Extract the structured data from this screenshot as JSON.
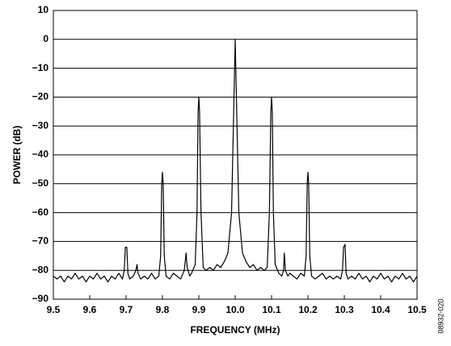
{
  "chart_data": {
    "type": "line",
    "y_label": "POWER (dB)",
    "x_label": "FREQUENCY (MHz)",
    "figure_id": "08932-020",
    "color": "#000000",
    "grid": true,
    "xlim": [
      9.5,
      10.5
    ],
    "ylim": [
      -90,
      10
    ],
    "xticks": [
      9.5,
      9.6,
      9.7,
      9.8,
      9.9,
      {
        "value": 10,
        "label": "10.0"
      },
      10.1,
      10.2,
      10.3,
      10.4,
      10.5
    ],
    "yticks": [
      {
        "value": -90,
        "label": "−90"
      },
      {
        "value": -80,
        "label": "−80"
      },
      {
        "value": -70,
        "label": "−70"
      },
      {
        "value": -60,
        "label": "−60"
      },
      {
        "value": -50,
        "label": "−50"
      },
      {
        "value": -40,
        "label": "−40"
      },
      {
        "value": -30,
        "label": "−30"
      },
      {
        "value": -20,
        "label": "−20"
      },
      {
        "value": -10,
        "label": "−10"
      },
      0,
      10
    ],
    "x": [
      9.5,
      9.51,
      9.52,
      9.53,
      9.54,
      9.55,
      9.56,
      9.57,
      9.58,
      9.59,
      9.6,
      9.61,
      9.62,
      9.63,
      9.64,
      9.65,
      9.66,
      9.67,
      9.68,
      9.69,
      9.695,
      9.698,
      9.702,
      9.705,
      9.71,
      9.72,
      9.727,
      9.73,
      9.733,
      9.74,
      9.75,
      9.76,
      9.77,
      9.78,
      9.79,
      9.795,
      9.798,
      9.8,
      9.802,
      9.805,
      9.81,
      9.82,
      9.83,
      9.84,
      9.85,
      9.86,
      9.865,
      9.868,
      9.875,
      9.88,
      9.89,
      9.895,
      9.898,
      9.9,
      9.902,
      9.906,
      9.912,
      9.92,
      9.93,
      9.94,
      9.95,
      9.96,
      9.97,
      9.98,
      9.99,
      9.995,
      10.0,
      10.005,
      10.01,
      10.02,
      10.03,
      10.04,
      10.05,
      10.06,
      10.07,
      10.08,
      10.088,
      10.094,
      10.098,
      10.1,
      10.102,
      10.105,
      10.11,
      10.12,
      10.128,
      10.133,
      10.135,
      10.138,
      10.145,
      10.15,
      10.16,
      10.17,
      10.18,
      10.19,
      10.195,
      10.198,
      10.2,
      10.202,
      10.205,
      10.21,
      10.22,
      10.23,
      10.24,
      10.25,
      10.26,
      10.27,
      10.28,
      10.29,
      10.295,
      10.298,
      10.302,
      10.305,
      10.31,
      10.32,
      10.33,
      10.34,
      10.35,
      10.36,
      10.37,
      10.38,
      10.39,
      10.4,
      10.41,
      10.42,
      10.43,
      10.44,
      10.45,
      10.46,
      10.47,
      10.48,
      10.49,
      10.5
    ],
    "values": [
      -82,
      -83,
      -82,
      -84,
      -82,
      -83,
      -81,
      -83,
      -82,
      -84,
      -82,
      -83,
      -81,
      -83,
      -82,
      -84,
      -82,
      -83,
      -81,
      -83,
      -80,
      -72,
      -72,
      -81,
      -83,
      -82,
      -80,
      -78,
      -81,
      -83,
      -82,
      -83,
      -81,
      -83,
      -82,
      -75,
      -50,
      -46,
      -50,
      -75,
      -82,
      -83,
      -81,
      -82,
      -83,
      -80,
      -74,
      -79,
      -82,
      -81,
      -78,
      -60,
      -25,
      -20,
      -25,
      -60,
      -79,
      -80,
      -79,
      -80,
      -78,
      -79,
      -77,
      -74,
      -60,
      -30,
      0,
      -30,
      -60,
      -74,
      -77,
      -79,
      -78,
      -80,
      -79,
      -80,
      -79,
      -60,
      -25,
      -20,
      -25,
      -60,
      -78,
      -81,
      -82,
      -80,
      -74,
      -80,
      -82,
      -81,
      -82,
      -83,
      -81,
      -82,
      -75,
      -50,
      -46,
      -50,
      -75,
      -82,
      -83,
      -82,
      -81,
      -83,
      -82,
      -83,
      -82,
      -83,
      -80,
      -72,
      -71,
      -81,
      -83,
      -82,
      -83,
      -81,
      -83,
      -82,
      -84,
      -82,
      -83,
      -81,
      -83,
      -82,
      -84,
      -82,
      -83,
      -81,
      -83,
      -82,
      -84,
      -82
    ]
  }
}
